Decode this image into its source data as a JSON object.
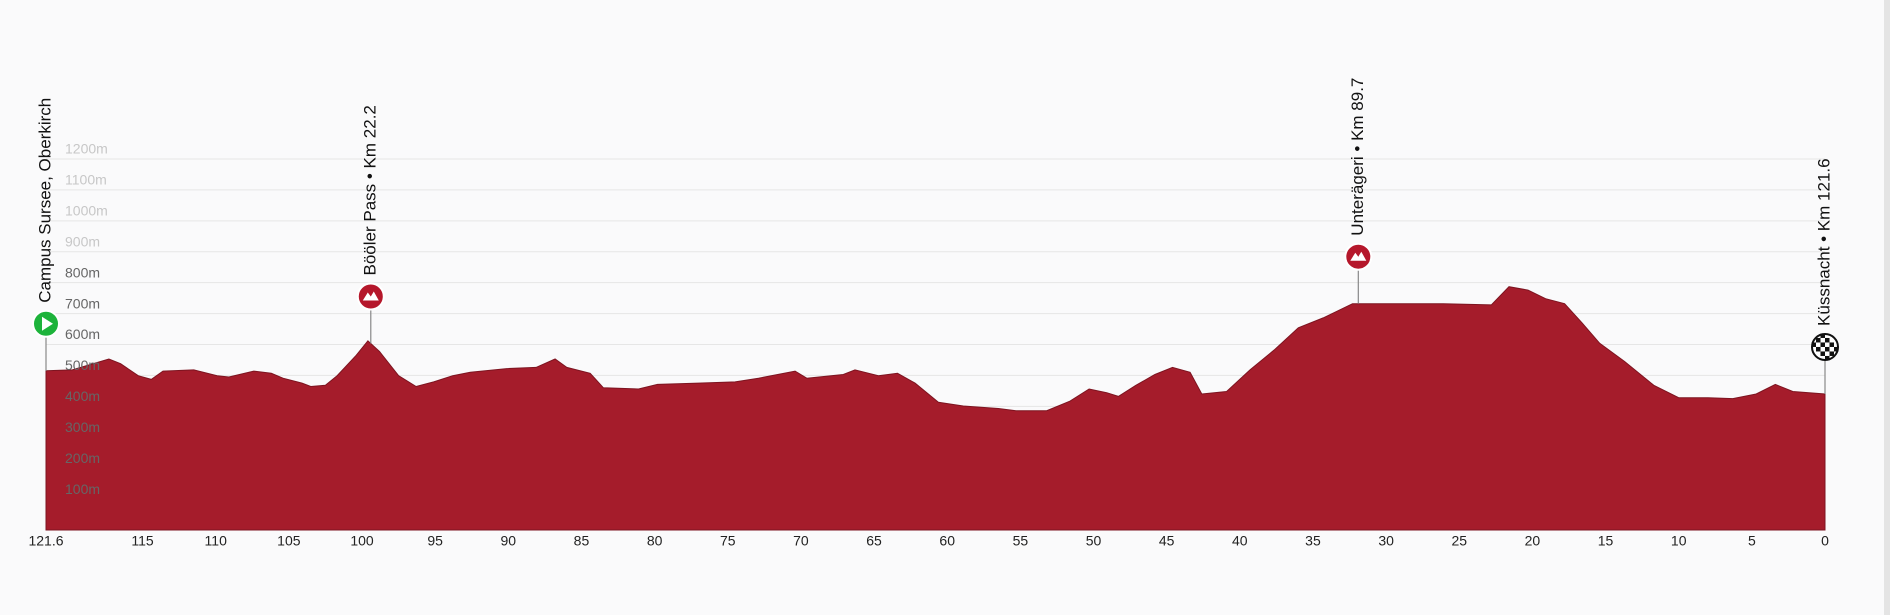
{
  "chart_data": {
    "type": "area",
    "color": "#a51c2b",
    "x": [
      121.6,
      119.8,
      117.3,
      116.5,
      115.3,
      114.4,
      113.6,
      111.5,
      109.9,
      109.1,
      107.4,
      106.2,
      105.4,
      104.1,
      103.5,
      102.5,
      101.7,
      100.4,
      99.6,
      98.8,
      97.5,
      96.3,
      95.1,
      93.8,
      92.6,
      90.1,
      88.1,
      86.8,
      86.0,
      84.4,
      83.5,
      81.1,
      79.8,
      77.0,
      74.5,
      72.9,
      70.4,
      69.6,
      67.1,
      66.3,
      64.7,
      63.4,
      62.2,
      60.6,
      58.9,
      56.5,
      55.3,
      53.2,
      51.6,
      50.3,
      49.1,
      48.3,
      47.1,
      45.8,
      44.6,
      43.4,
      42.6,
      40.9,
      39.3,
      37.6,
      36.0,
      34.3,
      32.3,
      30.2,
      26.1,
      22.8,
      21.6,
      20.3,
      19.1,
      17.8,
      16.6,
      15.4,
      13.7,
      11.7,
      10.0,
      8.0,
      6.3,
      4.7,
      3.4,
      2.2,
      0
    ],
    "values": [
      515,
      518,
      553,
      538,
      499,
      487,
      514,
      518,
      499,
      495,
      514,
      507,
      491,
      475,
      464,
      468,
      499,
      565,
      612,
      577,
      499,
      464,
      479,
      499,
      510,
      522,
      526,
      553,
      526,
      507,
      460,
      456,
      471,
      475,
      479,
      491,
      514,
      491,
      503,
      518,
      499,
      507,
      475,
      413,
      401,
      393,
      386,
      386,
      417,
      456,
      444,
      432,
      468,
      503,
      526,
      510,
      440,
      448,
      518,
      584,
      654,
      686,
      732,
      732,
      732,
      728,
      787,
      776,
      748,
      732,
      670,
      604,
      545,
      468,
      428,
      428,
      425,
      440,
      471,
      448,
      440
    ],
    "xlim": [
      121.6,
      0
    ],
    "ylim": [
      0,
      1200
    ],
    "xticks": [
      121.6,
      115,
      110,
      105,
      100,
      95,
      90,
      85,
      80,
      75,
      70,
      65,
      60,
      55,
      50,
      45,
      40,
      35,
      30,
      25,
      20,
      15,
      10,
      5,
      0
    ],
    "yticks": [
      {
        "value": 100,
        "label": "100m"
      },
      {
        "value": 200,
        "label": "200m"
      },
      {
        "value": 300,
        "label": "300m"
      },
      {
        "value": 400,
        "label": "400m"
      },
      {
        "value": 500,
        "label": "500m"
      },
      {
        "value": 600,
        "label": "600m"
      },
      {
        "value": 700,
        "label": "700m"
      },
      {
        "value": 800,
        "label": "800m"
      },
      {
        "value": 900,
        "label": "900m"
      },
      {
        "value": 1000,
        "label": "1000m"
      },
      {
        "value": 1100,
        "label": "1100m"
      },
      {
        "value": 1200,
        "label": "1200m"
      }
    ],
    "grid": true,
    "annotations": [
      {
        "x": 121.6,
        "label": "Campus Sursee, Oberkirch",
        "icon": "start"
      },
      {
        "x": 99.4,
        "label": "Bööler Pass • Km 22.2",
        "icon": "climb"
      },
      {
        "x": 31.9,
        "label": "Unterägeri • Km 89.7",
        "icon": "climb"
      },
      {
        "x": 0,
        "label": "Küssnacht • Km 121.6",
        "icon": "finish"
      }
    ]
  }
}
